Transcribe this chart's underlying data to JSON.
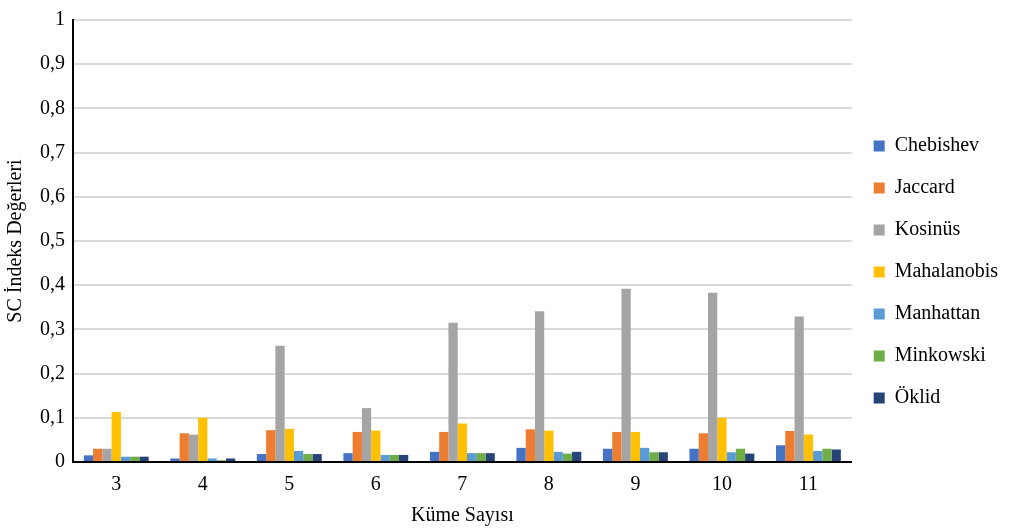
{
  "chart_data": {
    "type": "bar",
    "xlabel": "Küme Sayısı",
    "ylabel": "SC İndeks Değerleri",
    "categories": [
      "3",
      "4",
      "5",
      "6",
      "7",
      "8",
      "9",
      "10",
      "11"
    ],
    "series": [
      {
        "name": "Chebishev",
        "color": "#4472c4",
        "values": [
          0.015,
          0.008,
          0.018,
          0.02,
          0.023,
          0.032,
          0.03,
          0.03,
          0.038
        ]
      },
      {
        "name": "Jaccard",
        "color": "#ed7d31",
        "values": [
          0.03,
          0.065,
          0.072,
          0.068,
          0.068,
          0.074,
          0.068,
          0.065,
          0.07
        ]
      },
      {
        "name": "Kosinüs",
        "color": "#a5a5a5",
        "values": [
          0.03,
          0.062,
          0.263,
          0.122,
          0.315,
          0.341,
          0.392,
          0.383,
          0.329
        ]
      },
      {
        "name": "Mahalanobis",
        "color": "#ffc000",
        "values": [
          0.113,
          0.1,
          0.075,
          0.071,
          0.087,
          0.071,
          0.068,
          0.1,
          0.062
        ]
      },
      {
        "name": "Manhattan",
        "color": "#5b9bd5",
        "values": [
          0.012,
          0.008,
          0.025,
          0.016,
          0.02,
          0.023,
          0.032,
          0.022,
          0.025
        ]
      },
      {
        "name": "Minkowski",
        "color": "#70ad47",
        "values": [
          0.012,
          0.004,
          0.018,
          0.016,
          0.02,
          0.019,
          0.022,
          0.03,
          0.03
        ]
      },
      {
        "name": "Öklid",
        "color": "#264478",
        "values": [
          0.012,
          0.008,
          0.018,
          0.016,
          0.02,
          0.023,
          0.022,
          0.019,
          0.028
        ]
      }
    ],
    "ylim": [
      0,
      1
    ],
    "yticks": [
      0,
      {
        "value": 0.1,
        "label": "0,1"
      },
      {
        "value": 0.2,
        "label": "0,2"
      },
      {
        "value": 0.3,
        "label": "0,3"
      },
      {
        "value": 0.4,
        "label": "0,4"
      },
      {
        "value": 0.5,
        "label": "0,5"
      },
      {
        "value": 0.6,
        "label": "0,6"
      },
      {
        "value": 0.7,
        "label": "0,7"
      },
      {
        "value": 0.8,
        "label": "0,8"
      },
      {
        "value": 0.9,
        "label": "0,9"
      },
      1
    ],
    "grid": "y",
    "legend": "right"
  }
}
